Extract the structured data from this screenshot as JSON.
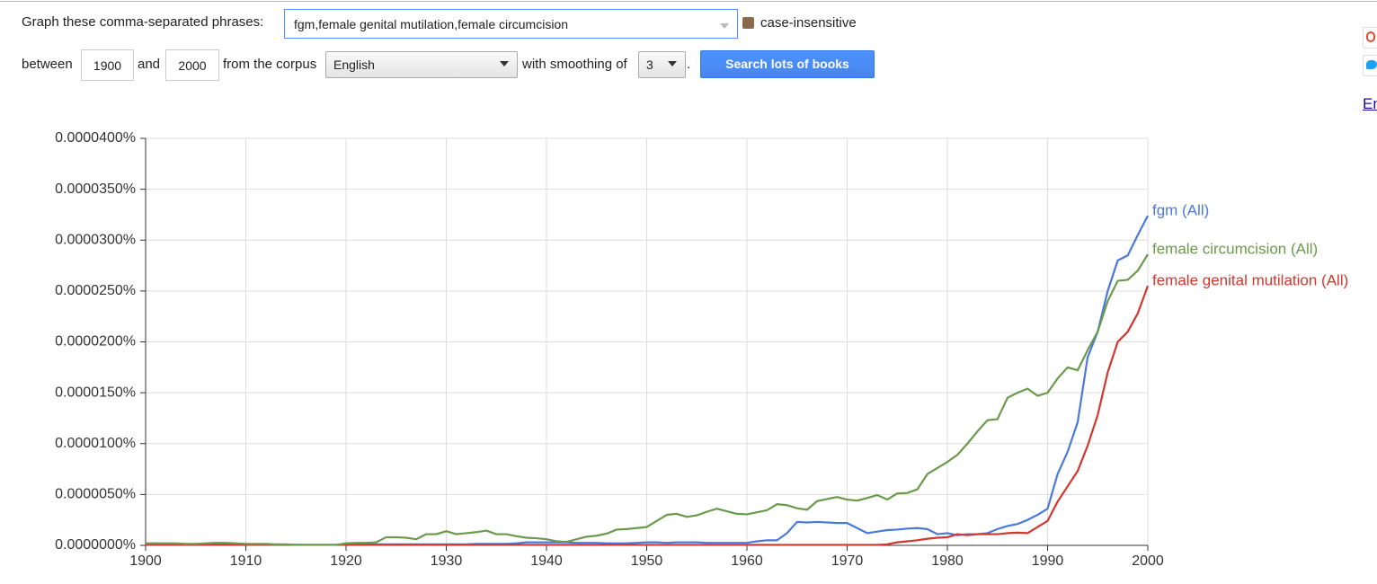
{
  "form": {
    "prompt": "Graph these comma-separated phrases:",
    "query": "fgm,female genital mutilation,female circumcision",
    "case_label": "case-insensitive",
    "between": "between",
    "start_year": "1900",
    "and": "and",
    "end_year": "2000",
    "corpus_label": "from the corpus",
    "corpus": "English",
    "smoothing_label": "with smoothing of",
    "smoothing": "3",
    "period": ".",
    "button": "Search lots of books",
    "side_link": "En"
  },
  "chart_data": {
    "type": "line",
    "x": [
      1900,
      1901,
      1902,
      1903,
      1904,
      1905,
      1906,
      1907,
      1908,
      1909,
      1910,
      1911,
      1912,
      1913,
      1914,
      1915,
      1916,
      1917,
      1918,
      1919,
      1920,
      1921,
      1922,
      1923,
      1924,
      1925,
      1926,
      1927,
      1928,
      1929,
      1930,
      1931,
      1932,
      1933,
      1934,
      1935,
      1936,
      1937,
      1938,
      1939,
      1940,
      1941,
      1942,
      1943,
      1944,
      1945,
      1946,
      1947,
      1948,
      1949,
      1950,
      1951,
      1952,
      1953,
      1954,
      1955,
      1956,
      1957,
      1958,
      1959,
      1960,
      1961,
      1962,
      1963,
      1964,
      1965,
      1966,
      1967,
      1968,
      1969,
      1970,
      1971,
      1972,
      1973,
      1974,
      1975,
      1976,
      1977,
      1978,
      1979,
      1980,
      1981,
      1982,
      1983,
      1984,
      1985,
      1986,
      1987,
      1988,
      1989,
      1990,
      1991,
      1992,
      1993,
      1994,
      1995,
      1996,
      1997,
      1998,
      1999,
      2000
    ],
    "series": [
      {
        "name": "fgm (All)",
        "color": "#4a79dc",
        "values": [
          1e-07,
          1e-07,
          1e-07,
          1e-07,
          1e-07,
          1e-07,
          1e-07,
          1e-07,
          1e-07,
          1e-07,
          1e-07,
          1e-07,
          1e-07,
          5e-08,
          5e-08,
          5e-08,
          5e-08,
          5e-08,
          5e-08,
          5e-08,
          5e-08,
          1e-07,
          1e-07,
          1e-07,
          1e-07,
          1e-07,
          1e-07,
          1e-07,
          1e-07,
          1e-07,
          1e-07,
          1e-07,
          1e-07,
          1.5e-07,
          1.5e-07,
          1.5e-07,
          1.5e-07,
          2e-07,
          3e-07,
          3e-07,
          3e-07,
          3e-07,
          3e-07,
          2.5e-07,
          2.5e-07,
          2.5e-07,
          2e-07,
          2e-07,
          2e-07,
          2.5e-07,
          3e-07,
          3e-07,
          2.5e-07,
          3e-07,
          3e-07,
          3e-07,
          2.5e-07,
          2.5e-07,
          2.5e-07,
          2.5e-07,
          2.5e-07,
          4e-07,
          5e-07,
          5e-07,
          1.2e-06,
          2.3e-06,
          2.25e-06,
          2.3e-06,
          2.25e-06,
          2.2e-06,
          2.2e-06,
          1.7e-06,
          1.2e-06,
          1.35e-06,
          1.5e-06,
          1.55e-06,
          1.65e-06,
          1.7e-06,
          1.6e-06,
          1.1e-06,
          1.2e-06,
          1e-06,
          1.1e-06,
          1.1e-06,
          1.2e-06,
          1.6e-06,
          1.9e-06,
          2.1e-06,
          2.5e-06,
          3e-06,
          3.6e-06,
          7e-06,
          9.2e-06,
          1.21e-05,
          1.85e-05,
          2.1e-05,
          2.5e-05,
          2.8e-05,
          2.85e-05,
          3.05e-05,
          3.24e-05
        ]
      },
      {
        "name": "female genital mutilation (All)",
        "color": "#d1372e",
        "values": [
          5e-08,
          5e-08,
          5e-08,
          5e-08,
          5e-08,
          5e-08,
          5e-08,
          5e-08,
          5e-08,
          5e-08,
          5e-08,
          5e-08,
          5e-08,
          5e-08,
          5e-08,
          5e-08,
          5e-08,
          5e-08,
          5e-08,
          5e-08,
          5e-08,
          5e-08,
          5e-08,
          5e-08,
          5e-08,
          5e-08,
          5e-08,
          5e-08,
          5e-08,
          5e-08,
          5e-08,
          5e-08,
          5e-08,
          5e-08,
          5e-08,
          5e-08,
          5e-08,
          5e-08,
          5e-08,
          5e-08,
          5e-08,
          5e-08,
          5e-08,
          5e-08,
          5e-08,
          5e-08,
          5e-08,
          5e-08,
          5e-08,
          5e-08,
          5e-08,
          5e-08,
          5e-08,
          5e-08,
          5e-08,
          5e-08,
          5e-08,
          5e-08,
          5e-08,
          5e-08,
          5e-08,
          5e-08,
          5e-08,
          5e-08,
          5e-08,
          5e-08,
          5e-08,
          5e-08,
          5e-08,
          5e-08,
          5e-08,
          5e-08,
          5e-08,
          5e-08,
          1e-07,
          3e-07,
          4e-07,
          5e-07,
          6.5e-07,
          7.5e-07,
          8e-07,
          1.1e-06,
          1e-06,
          1.1e-06,
          1.1e-06,
          1.1e-06,
          1.2e-06,
          1.25e-06,
          1.2e-06,
          1.8e-06,
          2.4e-06,
          4.3e-06,
          5.8e-06,
          7.3e-06,
          9.8e-06,
          1.28e-05,
          1.7e-05,
          2e-05,
          2.1e-05,
          2.28e-05,
          2.55e-05
        ]
      },
      {
        "name": "female circumcision (All)",
        "color": "#6a9a4c",
        "values": [
          2e-07,
          2e-07,
          2e-07,
          2e-07,
          1.5e-07,
          1.5e-07,
          2e-07,
          2.5e-07,
          2.5e-07,
          2e-07,
          1.5e-07,
          1.5e-07,
          1.5e-07,
          1e-07,
          1e-07,
          5e-08,
          5e-08,
          5e-08,
          5e-08,
          5e-08,
          2e-07,
          2.5e-07,
          2.5e-07,
          3e-07,
          8e-07,
          8e-07,
          7.5e-07,
          6e-07,
          1.1e-06,
          1.1e-06,
          1.4e-06,
          1.1e-06,
          1.2e-06,
          1.3e-06,
          1.45e-06,
          1.1e-06,
          1.1e-06,
          9e-07,
          7.5e-07,
          7e-07,
          6e-07,
          4e-07,
          3.5e-07,
          6e-07,
          8.5e-07,
          9.5e-07,
          1.15e-06,
          1.55e-06,
          1.6e-06,
          1.7e-06,
          1.8e-06,
          2.4e-06,
          3e-06,
          3.1e-06,
          2.8e-06,
          2.95e-06,
          3.3e-06,
          3.6e-06,
          3.35e-06,
          3.1e-06,
          3.05e-06,
          3.25e-06,
          3.45e-06,
          4.05e-06,
          3.95e-06,
          3.65e-06,
          3.5e-06,
          4.35e-06,
          4.55e-06,
          4.75e-06,
          4.5e-06,
          4.4e-06,
          4.65e-06,
          4.95e-06,
          4.5e-06,
          5.1e-06,
          5.15e-06,
          5.5e-06,
          7e-06,
          7.6e-06,
          8.2e-06,
          8.9e-06,
          1e-05,
          1.12e-05,
          1.23e-05,
          1.24e-05,
          1.45e-05,
          1.5e-05,
          1.54e-05,
          1.47e-05,
          1.5e-05,
          1.64e-05,
          1.75e-05,
          1.72e-05,
          1.92e-05,
          2.1e-05,
          2.4e-05,
          2.6e-05,
          2.61e-05,
          2.7e-05,
          2.86e-05
        ]
      }
    ],
    "xlim": [
      1900,
      2000
    ],
    "xticks": [
      1900,
      1910,
      1920,
      1930,
      1940,
      1950,
      1960,
      1970,
      1980,
      1990,
      2000
    ],
    "ylim": [
      0,
      4e-05
    ],
    "yticks": [
      {
        "value": 0,
        "label": "0.0000000%"
      },
      {
        "value": 5e-06,
        "label": "0.0000050%"
      },
      {
        "value": 1e-05,
        "label": "0.0000100%"
      },
      {
        "value": 1.5e-05,
        "label": "0.0000150%"
      },
      {
        "value": 2e-05,
        "label": "0.0000200%"
      },
      {
        "value": 2.5e-05,
        "label": "0.0000250%"
      },
      {
        "value": 3e-05,
        "label": "0.0000300%"
      },
      {
        "value": 3.5e-05,
        "label": "0.0000350%"
      },
      {
        "value": 4e-05,
        "label": "0.0000400%"
      }
    ],
    "grid": true
  }
}
